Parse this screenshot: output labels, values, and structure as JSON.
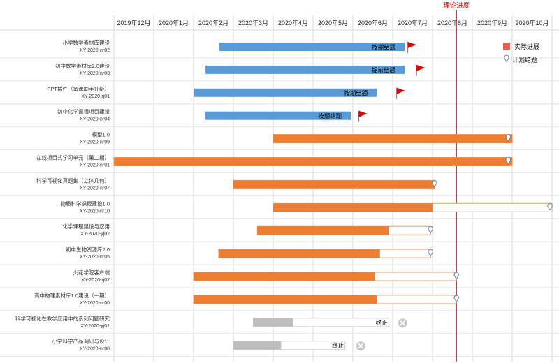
{
  "chart_data": {
    "type": "gantt",
    "months": [
      "2019年12月",
      "2020年1月",
      "2020年2月",
      "2020年3月",
      "2020年4月",
      "2020年5月",
      "2020年6月",
      "2020年7月",
      "2020年8月",
      "2020年9月",
      "2020年10月"
    ],
    "today_label": "理论进度",
    "today": 8.6,
    "legend": {
      "actual": "实际进展",
      "planned": "计划结题",
      "actual_color": "#e8604c",
      "planned_icon": "pin-icon"
    },
    "colors": {
      "blue": "#5b9bd5",
      "orange": "#ed7d31",
      "gray": "#bfbfbf",
      "flag": "#e00000",
      "today_line": "#e00000"
    },
    "tasks": [
      {
        "name": "小学数学素材库建设",
        "code": "XY-2020-nr02",
        "style": "blue",
        "start": 2.65,
        "actual_end": 7.3,
        "marker": "flag",
        "marker_at": 7.38,
        "status": "按期结题"
      },
      {
        "name": "初中数学素材库2.0建设",
        "code": "XY-2020-nr03",
        "style": "blue",
        "start": 2.3,
        "actual_end": 7.3,
        "marker": "flag",
        "marker_at": 7.6,
        "status": "提前结题"
      },
      {
        "name": "PPT插件（备课助手升级）",
        "code": "XY-2020-rj01",
        "style": "blue",
        "start": 2.0,
        "actual_end": 6.6,
        "marker": "flag",
        "marker_at": 7.1,
        "status": "按期结题"
      },
      {
        "name": "初中化学课程项目建设",
        "code": "XY-2020-nr04",
        "style": "blue",
        "start": 2.28,
        "actual_end": 5.95,
        "marker": "flag",
        "marker_at": 6.15,
        "status": "按期结题"
      },
      {
        "name": "模型1.0",
        "code": "XY-2020-nr09",
        "style": "orange",
        "start": 4.0,
        "actual_end": 10.0,
        "plan_end": 10.0,
        "marker": "pin",
        "marker_at": 9.9,
        "status": ""
      },
      {
        "name": "在线项目式学习单元（第二期）",
        "code": "XY-2020-nr01",
        "style": "orange",
        "start": 0.0,
        "actual_end": 10.0,
        "plan_end": 10.0,
        "marker": "pin",
        "marker_at": 9.9,
        "status": ""
      },
      {
        "name": "科学可视化真题集（立体几何）",
        "code": "XY-2020-nr07",
        "style": "orange",
        "start": 3.0,
        "actual_end": 8.05,
        "plan_end": 8.05,
        "marker": "pin",
        "marker_at": 8.05,
        "status": ""
      },
      {
        "name": "物质科学课程建设1.0",
        "code": "XY-2020-nr10",
        "style": "orange",
        "start": 4.0,
        "actual_end": 8.0,
        "plan_end": 11.0,
        "marker": "pin",
        "marker_at": 10.95,
        "status": ""
      },
      {
        "name": "化学课程建设与应用",
        "code": "XY-2020-yj02",
        "style": "orange",
        "start": 3.6,
        "actual_end": 6.9,
        "plan_end": 7.95,
        "marker": "pin",
        "marker_at": 7.95,
        "status": ""
      },
      {
        "name": "初中生物资源库2.0",
        "code": "XY-2020-nr05",
        "style": "orange",
        "start": 2.63,
        "actual_end": 6.68,
        "plan_end": 7.95,
        "marker": "pin",
        "marker_at": 7.95,
        "status": ""
      },
      {
        "name": "火花学院客户端",
        "code": "XY-2020-rj02",
        "style": "orange",
        "start": 2.0,
        "actual_end": 6.55,
        "plan_end": 8.6,
        "marker": "pin",
        "marker_at": 8.6,
        "status": ""
      },
      {
        "name": "高中物理素材库1.0建设（一期）",
        "code": "XY-2020-nr06",
        "style": "orange",
        "start": 2.0,
        "actual_end": 6.6,
        "plan_end": 8.6,
        "marker": "pin",
        "marker_at": 8.6,
        "status": ""
      },
      {
        "name": "科学可视化在教学应用中的系列问题研究",
        "code": "XY-2020-yj01",
        "style": "gray",
        "start": 3.5,
        "actual_end": 4.5,
        "plan_end": 6.9,
        "marker": "cross",
        "marker_at": 7.25,
        "status": "终止"
      },
      {
        "name": "小学科学产品调研与设计",
        "code": "XY-2020-nr08",
        "style": "gray",
        "start": 3.0,
        "actual_end": 4.2,
        "plan_end": 5.8,
        "marker": "cross",
        "marker_at": 6.2,
        "status": "终止"
      }
    ]
  }
}
